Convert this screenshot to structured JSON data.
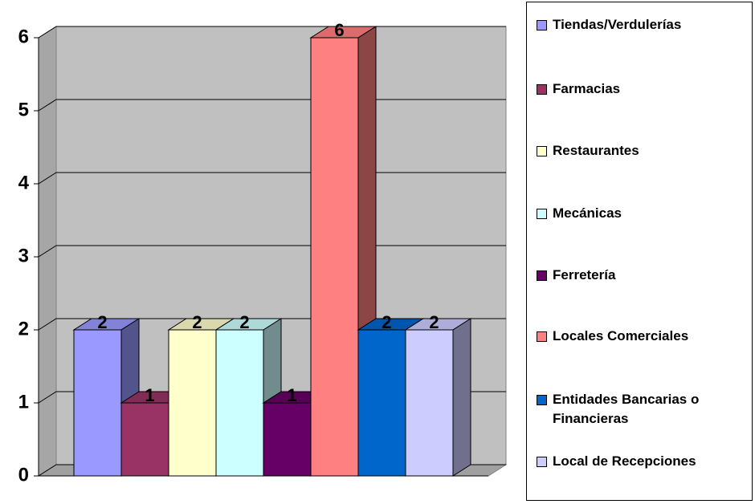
{
  "chart_data": {
    "type": "bar3d",
    "categories": [
      "Tiendas/Verdulerías",
      "Farmacias",
      "Restaurantes",
      "Mecánicas",
      "Ferretería",
      "Locales Comerciales",
      "Entidades Bancarias  o Financieras",
      "Local de Recepciones"
    ],
    "values": [
      2,
      1,
      2,
      2,
      1,
      6,
      2,
      2
    ],
    "colors": [
      "#9999ff",
      "#993366",
      "#ffffcc",
      "#ccffff",
      "#660066",
      "#ff8080",
      "#0066cc",
      "#ccccff"
    ],
    "ylim": [
      0,
      6
    ],
    "yticks": [
      0,
      1,
      2,
      3,
      4,
      5,
      6
    ],
    "grid": true,
    "legend": "right"
  }
}
